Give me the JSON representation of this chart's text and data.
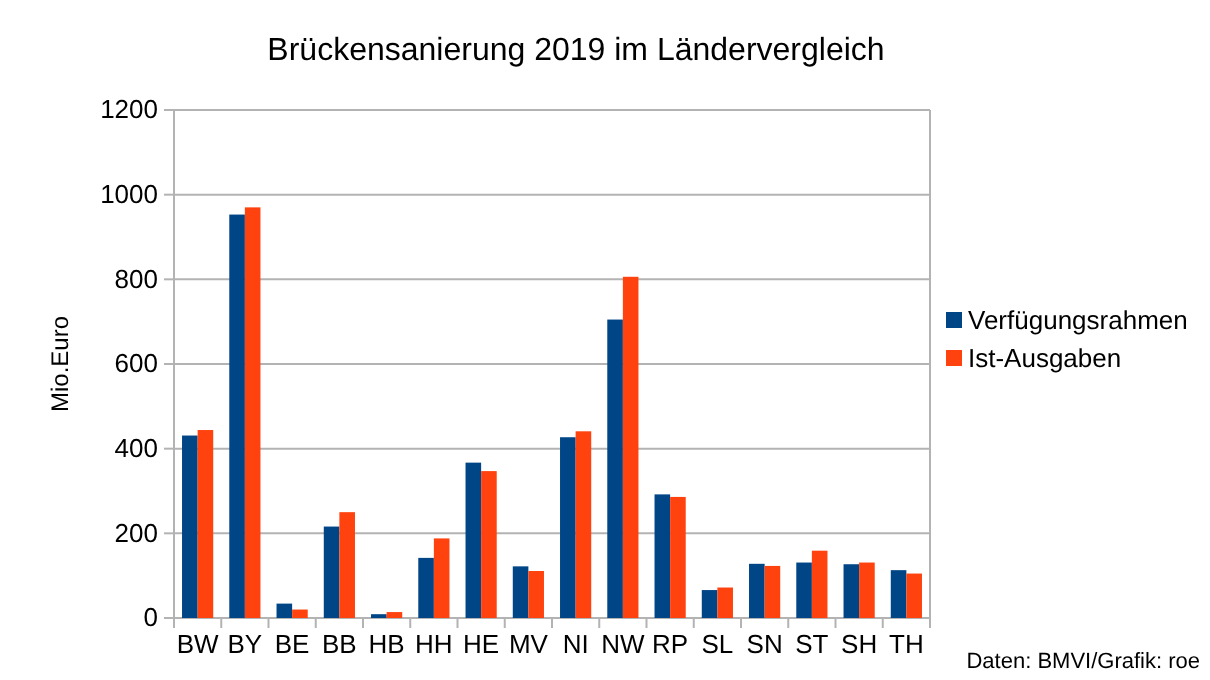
{
  "chart_data": {
    "type": "bar",
    "title": "Brückensanierung 2019 im Ländervergleich",
    "ylabel": "Mio.Euro",
    "categories": [
      "BW",
      "BY",
      "BE",
      "BB",
      "HB",
      "HH",
      "HE",
      "MV",
      "NI",
      "NW",
      "RP",
      "SL",
      "SN",
      "ST",
      "SH",
      "TH"
    ],
    "series": [
      {
        "name": "Verfügungsrahmen",
        "color": "#004586",
        "values": [
          431,
          953,
          34,
          216,
          9,
          142,
          367,
          122,
          427,
          705,
          292,
          66,
          128,
          131,
          127,
          113
        ]
      },
      {
        "name": "Ist-Ausgaben",
        "color": "#ff420e",
        "values": [
          444,
          970,
          20,
          250,
          14,
          188,
          347,
          111,
          441,
          806,
          286,
          72,
          123,
          159,
          131,
          105
        ]
      }
    ],
    "ylim": [
      0,
      1200
    ],
    "yticks": [
      0,
      200,
      400,
      600,
      800,
      1000,
      1200
    ],
    "grid": "y",
    "legend": "right",
    "annotations": [
      "Daten: BMVI/Grafik: roe"
    ]
  }
}
